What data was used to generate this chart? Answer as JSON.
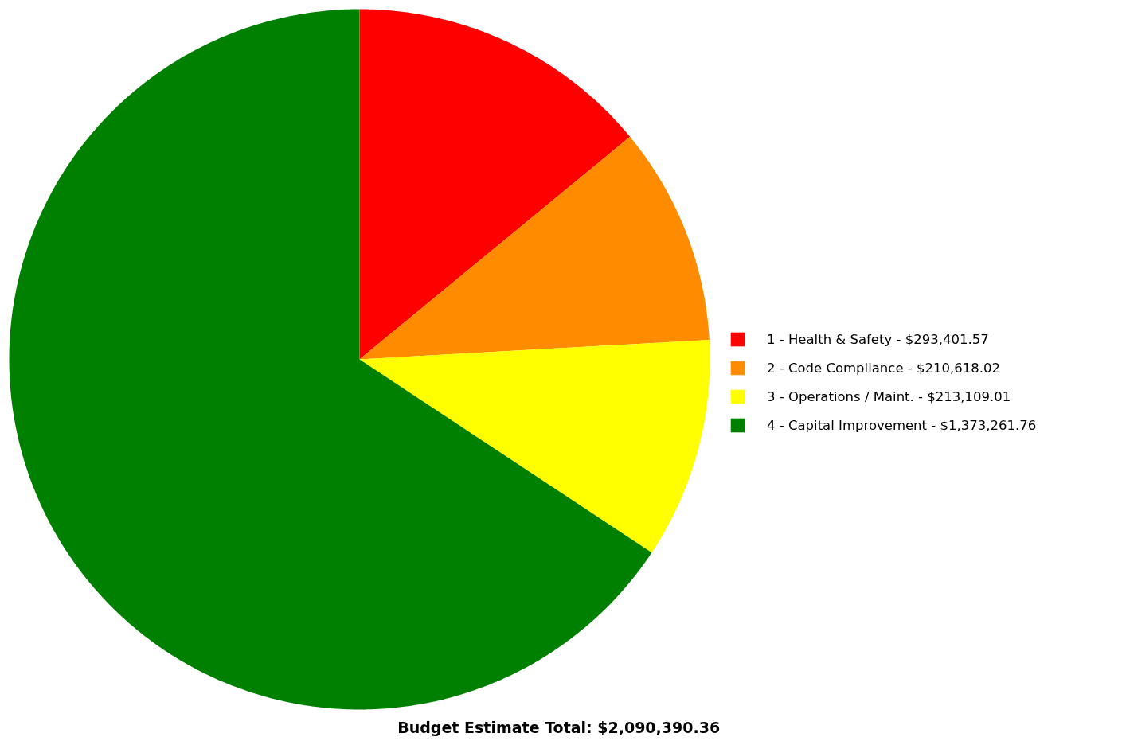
{
  "chart_data": {
    "type": "pie",
    "title": "Budget Estimate Total:  $2,090,390.36",
    "categories": [
      "1 - Health & Safety",
      "2 - Code Compliance",
      "3 - Operations / Maint.",
      "4 - Capital Improvement"
    ],
    "value_labels": [
      "$293,401.57",
      "$210,618.02",
      "$213,109.01",
      "$1,373,261.76"
    ],
    "values": [
      293401.57,
      210618.02,
      213109.01,
      1373261.76
    ],
    "colors": [
      "#ff0000",
      "#ff8c00",
      "#ffff00",
      "#008000"
    ],
    "legend": "right"
  }
}
